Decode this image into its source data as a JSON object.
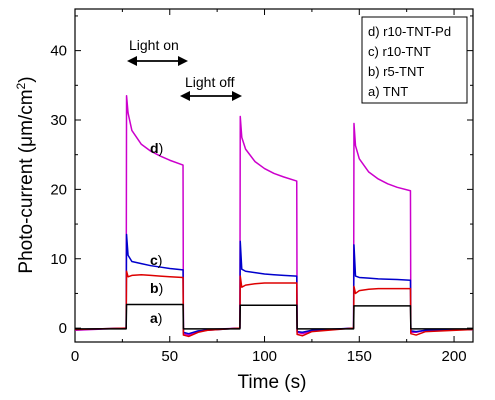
{
  "chart_data": {
    "type": "line",
    "xlabel": "Time (s)",
    "ylabel_main": "Photo-current (μm/cm",
    "ylabel_sup": "2",
    "ylabel_close": ")",
    "xlim": [
      0,
      210
    ],
    "ylim": [
      -2,
      46
    ],
    "x_ticks": [
      0,
      50,
      100,
      150,
      200
    ],
    "y_ticks": [
      0,
      10,
      20,
      30,
      40
    ],
    "legend_position": "top-right",
    "legend": [
      {
        "label": "d) r10-TNT-Pd"
      },
      {
        "label": "c) r10-TNT"
      },
      {
        "label": "b) r5-TNT"
      },
      {
        "label": "a) TNT"
      }
    ],
    "annotations": {
      "light_on": "Light on",
      "light_off": "Light off"
    },
    "light_on_intervals": [
      [
        27,
        57
      ],
      [
        87,
        117
      ],
      [
        147,
        177
      ]
    ],
    "series": [
      {
        "name": "d)",
        "label_text": "d",
        "label_close": ")",
        "color": "#cc00cc",
        "points": [
          [
            0,
            -0.3
          ],
          [
            26,
            0
          ],
          [
            27,
            0
          ],
          [
            27.2,
            33.5
          ],
          [
            28,
            31
          ],
          [
            30,
            28.5
          ],
          [
            35,
            26.5
          ],
          [
            40,
            25.5
          ],
          [
            45,
            24.8
          ],
          [
            50,
            24.2
          ],
          [
            57,
            23.5
          ],
          [
            57.2,
            -0.8
          ],
          [
            60,
            -1.0
          ],
          [
            65,
            -0.5
          ],
          [
            70,
            -0.2
          ],
          [
            86.8,
            0
          ],
          [
            87,
            0
          ],
          [
            87.2,
            30.5
          ],
          [
            88,
            27.5
          ],
          [
            90,
            25.8
          ],
          [
            95,
            24
          ],
          [
            100,
            23
          ],
          [
            105,
            22.3
          ],
          [
            110,
            21.8
          ],
          [
            117,
            21.2
          ],
          [
            117.2,
            -0.6
          ],
          [
            120,
            -0.8
          ],
          [
            125,
            -0.4
          ],
          [
            146.8,
            0
          ],
          [
            147,
            0
          ],
          [
            147.2,
            29.5
          ],
          [
            148,
            26.3
          ],
          [
            150,
            24.4
          ],
          [
            155,
            22.5
          ],
          [
            160,
            21.5
          ],
          [
            165,
            20.8
          ],
          [
            170,
            20.3
          ],
          [
            177,
            19.8
          ],
          [
            177.2,
            -0.6
          ],
          [
            180,
            -0.6
          ],
          [
            185,
            -0.3
          ],
          [
            210,
            -0.2
          ]
        ]
      },
      {
        "name": "c)",
        "label_text": "c",
        "label_close": ")",
        "color": "#0000cc",
        "points": [
          [
            0,
            -0.2
          ],
          [
            26.8,
            0
          ],
          [
            27,
            0
          ],
          [
            27.2,
            13.5
          ],
          [
            28,
            10.5
          ],
          [
            30,
            9.6
          ],
          [
            35,
            9.3
          ],
          [
            40,
            9.0
          ],
          [
            45,
            8.8
          ],
          [
            50,
            8.6
          ],
          [
            57,
            8.4
          ],
          [
            57.2,
            -0.6
          ],
          [
            60,
            -0.8
          ],
          [
            65,
            -0.4
          ],
          [
            86.8,
            0
          ],
          [
            87,
            0
          ],
          [
            87.2,
            12.5
          ],
          [
            88,
            8.5
          ],
          [
            90,
            8.2
          ],
          [
            95,
            8.0
          ],
          [
            100,
            7.8
          ],
          [
            105,
            7.7
          ],
          [
            110,
            7.6
          ],
          [
            117,
            7.5
          ],
          [
            117.2,
            -0.5
          ],
          [
            120,
            -0.6
          ],
          [
            125,
            -0.3
          ],
          [
            146.8,
            0
          ],
          [
            147,
            0
          ],
          [
            147.2,
            12
          ],
          [
            148,
            7.5
          ],
          [
            150,
            7.3
          ],
          [
            155,
            7.2
          ],
          [
            160,
            7.1
          ],
          [
            170,
            7.0
          ],
          [
            177,
            6.9
          ],
          [
            177.2,
            -0.4
          ],
          [
            180,
            -0.5
          ],
          [
            185,
            -0.3
          ],
          [
            210,
            -0.2
          ]
        ]
      },
      {
        "name": "b)",
        "label_text": "b",
        "label_close": ")",
        "color": "#dd0000",
        "points": [
          [
            0,
            -0.2
          ],
          [
            26.8,
            0
          ],
          [
            27,
            0
          ],
          [
            27.2,
            8.2
          ],
          [
            28,
            7.4
          ],
          [
            30,
            7.6
          ],
          [
            35,
            7.7
          ],
          [
            40,
            7.6
          ],
          [
            45,
            7.5
          ],
          [
            50,
            7.4
          ],
          [
            57,
            7.3
          ],
          [
            57.2,
            -1.0
          ],
          [
            60,
            -1.2
          ],
          [
            65,
            -0.6
          ],
          [
            70,
            -0.3
          ],
          [
            86.8,
            0
          ],
          [
            87,
            0
          ],
          [
            87.2,
            7.5
          ],
          [
            88,
            5.9
          ],
          [
            90,
            6.2
          ],
          [
            95,
            6.4
          ],
          [
            100,
            6.5
          ],
          [
            110,
            6.5
          ],
          [
            117,
            6.5
          ],
          [
            117.2,
            -0.9
          ],
          [
            120,
            -1.1
          ],
          [
            125,
            -0.5
          ],
          [
            146.8,
            0
          ],
          [
            147,
            0
          ],
          [
            147.2,
            6.0
          ],
          [
            148,
            5.0
          ],
          [
            150,
            5.4
          ],
          [
            155,
            5.6
          ],
          [
            160,
            5.7
          ],
          [
            170,
            5.7
          ],
          [
            177,
            5.7
          ],
          [
            177.2,
            -0.8
          ],
          [
            180,
            -1.0
          ],
          [
            185,
            -0.5
          ],
          [
            210,
            -0.2
          ]
        ]
      },
      {
        "name": "a)",
        "label_text": "a",
        "label_close": ")",
        "color": "#000000",
        "points": [
          [
            0,
            -0.1
          ],
          [
            26.8,
            -0.1
          ],
          [
            27,
            -0.1
          ],
          [
            27.2,
            3.4
          ],
          [
            30,
            3.4
          ],
          [
            40,
            3.4
          ],
          [
            50,
            3.4
          ],
          [
            57,
            3.4
          ],
          [
            57.2,
            -0.1
          ],
          [
            70,
            -0.1
          ],
          [
            86.8,
            -0.1
          ],
          [
            87,
            -0.1
          ],
          [
            87.2,
            3.3
          ],
          [
            100,
            3.3
          ],
          [
            117,
            3.3
          ],
          [
            117.2,
            -0.1
          ],
          [
            146.8,
            -0.1
          ],
          [
            147,
            -0.1
          ],
          [
            147.2,
            3.2
          ],
          [
            160,
            3.2
          ],
          [
            177,
            3.2
          ],
          [
            177.2,
            -0.1
          ],
          [
            210,
            -0.1
          ]
        ]
      }
    ]
  }
}
